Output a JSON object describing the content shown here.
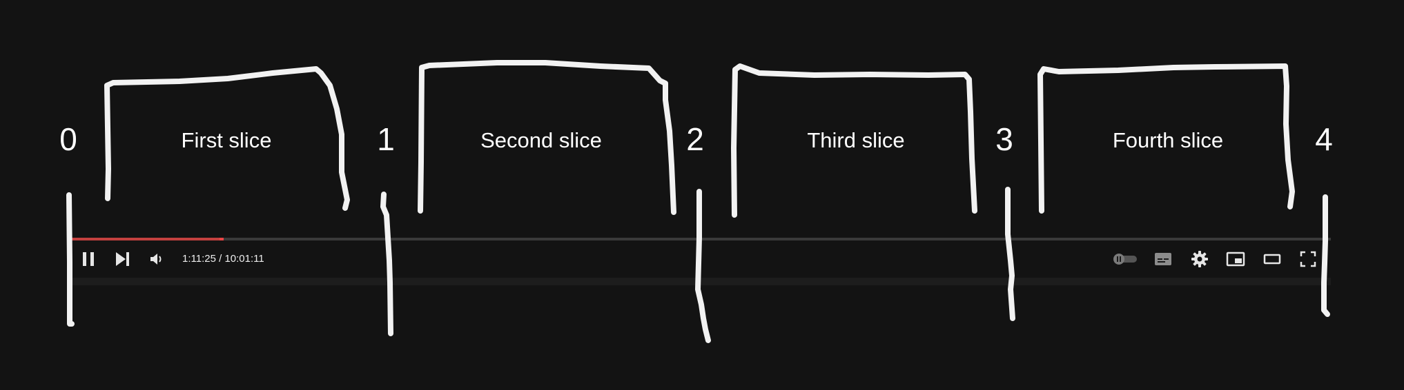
{
  "markers": [
    "0",
    "1",
    "2",
    "3",
    "4"
  ],
  "slices": [
    "First slice",
    "Second slice",
    "Third slice",
    "Fourth slice"
  ],
  "player": {
    "current_time": "1:11:25",
    "duration": "10:01:11",
    "time_separator": " / ",
    "progress_fraction": 0.119,
    "buffered_fraction": 0.12,
    "colors": {
      "played": "#c4413f",
      "track": "#3a3a3a",
      "background": "#131313"
    },
    "icons": {
      "pause": "pause-icon",
      "next": "next-icon",
      "volume": "volume-icon",
      "autoplay": "autoplay-toggle-icon",
      "subtitles": "subtitles-icon",
      "settings": "gear-icon",
      "miniplayer": "miniplayer-icon",
      "theater": "theater-mode-icon",
      "fullscreen": "fullscreen-icon"
    }
  }
}
